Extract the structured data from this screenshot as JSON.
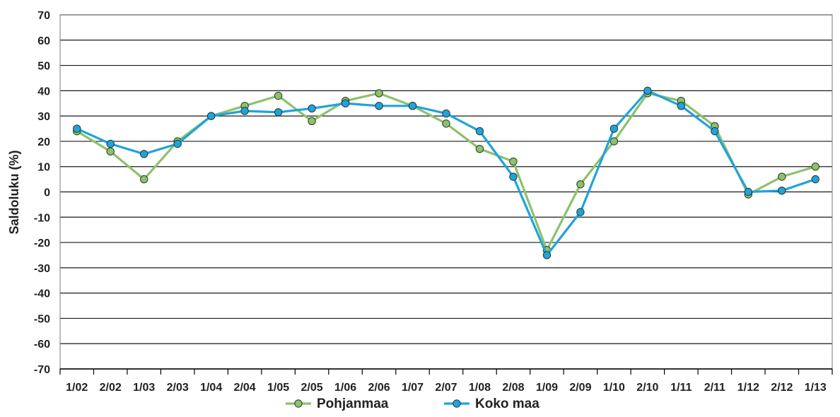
{
  "chart_data": {
    "type": "line",
    "ylabel": "Saldoluku (%)",
    "xlabel": "",
    "ylim": [
      -70,
      70
    ],
    "yticks": [
      "70",
      "60",
      "50",
      "40",
      "30",
      "20",
      "10",
      "0",
      "-10",
      "-20",
      "-30",
      "-40",
      "-50",
      "-60",
      "-70"
    ],
    "categories": [
      "1/02",
      "2/02",
      "1/03",
      "2/03",
      "1/04",
      "2/04",
      "1/05",
      "2/05",
      "1/06",
      "2/06",
      "1/07",
      "2/07",
      "1/08",
      "2/08",
      "1/09",
      "2/09",
      "1/10",
      "2/10",
      "1/11",
      "2/11",
      "1/12",
      "2/12",
      "1/13"
    ],
    "grid": true,
    "legend_position": "bottom",
    "series": [
      {
        "name": "Pohjanmaa",
        "color": "#8dc16b",
        "values": [
          24,
          16,
          5,
          20,
          30,
          34,
          38,
          28,
          36,
          39,
          34,
          27,
          17,
          12,
          -23,
          3,
          20,
          39,
          36,
          26,
          -1,
          6,
          10
        ]
      },
      {
        "name": "Koko maa",
        "color": "#1fa3dd",
        "values": [
          25,
          19,
          15,
          19,
          30,
          32,
          31.5,
          33,
          35,
          34,
          34,
          31,
          24,
          6,
          -25,
          -8,
          25,
          40,
          34,
          24,
          0,
          0.5,
          5
        ]
      }
    ]
  }
}
